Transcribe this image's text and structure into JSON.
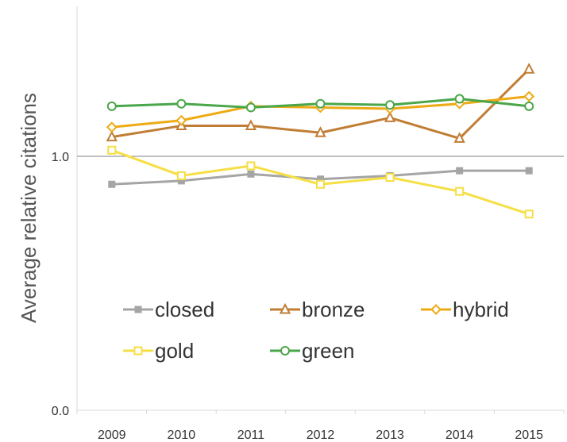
{
  "chart_data": {
    "type": "line",
    "title": "",
    "xlabel": "",
    "ylabel": "Average relative citations",
    "x": [
      "2009",
      "2010",
      "2011",
      "2012",
      "2013",
      "2014",
      "2015"
    ],
    "y_tick_labels": [
      "0.0",
      "1.0"
    ],
    "ylim": [
      0,
      2
    ],
    "y_scale": "log",
    "grid": false,
    "reference_line_at": 1.0,
    "legend_position": "lower-center",
    "series": [
      {
        "name": "closed",
        "color": "#a5a5a5",
        "marker": "square-filled",
        "values": [
          0.83,
          0.85,
          0.89,
          0.86,
          0.88,
          0.91,
          0.91
        ]
      },
      {
        "name": "bronze",
        "color": "#c17d34",
        "marker": "triangle-open",
        "values": [
          1.13,
          1.21,
          1.21,
          1.16,
          1.27,
          1.12,
          1.68
        ]
      },
      {
        "name": "hybrid",
        "color": "#edaa14",
        "marker": "diamond-open",
        "values": [
          1.2,
          1.25,
          1.36,
          1.35,
          1.34,
          1.38,
          1.44
        ]
      },
      {
        "name": "gold",
        "color": "#f5df44",
        "marker": "square-open",
        "values": [
          1.04,
          0.88,
          0.94,
          0.83,
          0.87,
          0.79,
          0.67
        ]
      },
      {
        "name": "green",
        "color": "#4aa64a",
        "marker": "circle-open",
        "values": [
          1.36,
          1.38,
          1.35,
          1.38,
          1.37,
          1.42,
          1.36
        ]
      }
    ]
  }
}
